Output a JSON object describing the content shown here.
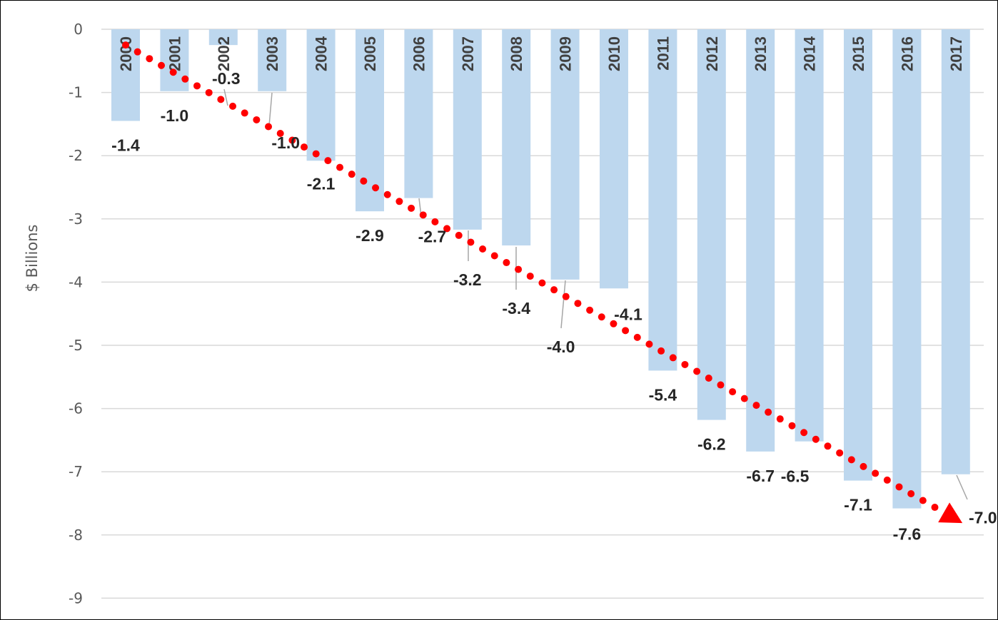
{
  "chart_data": {
    "type": "bar",
    "title": "",
    "xlabel": "",
    "ylabel": "$ Billions",
    "ylim": [
      -9,
      0
    ],
    "yticks": [
      0,
      -1,
      -2,
      -3,
      -4,
      -5,
      -6,
      -7,
      -8,
      -9
    ],
    "ytick_labels": [
      "0",
      "-1",
      "-2",
      "-3",
      "-4",
      "-5",
      "-6",
      "-7",
      "-8",
      "-9"
    ],
    "grid": true,
    "legend": "none",
    "bar_color": "#BDD7EE",
    "trend_color": "#FF0000",
    "trend_style": "dotted line with arrow head",
    "categories": [
      "2000",
      "2001",
      "2002",
      "2003",
      "2004",
      "2005",
      "2006",
      "2007",
      "2008",
      "2009",
      "2010",
      "2011",
      "2012",
      "2013",
      "2014",
      "2015",
      "2016",
      "2017"
    ],
    "values": [
      -1.45,
      -0.98,
      -0.25,
      -0.98,
      -2.08,
      -2.88,
      -2.67,
      -3.17,
      -3.42,
      -3.96,
      -4.1,
      -5.4,
      -6.18,
      -6.68,
      -6.52,
      -7.14,
      -7.58,
      -7.04
    ],
    "data_labels": [
      "-1.4",
      "-1.0",
      "-0.3",
      "-1.0",
      "-2.1",
      "-2.9",
      "-2.7",
      "-3.2",
      "-3.4",
      "-4.0",
      "-4.1",
      "-5.4",
      "-6.2",
      "-6.7",
      "-6.5",
      "-7.1",
      "-7.6",
      "-7.0"
    ],
    "trend": {
      "x_start": "2000",
      "y_start": -0.25,
      "x_end": "2017",
      "y_end": -7.7
    }
  }
}
